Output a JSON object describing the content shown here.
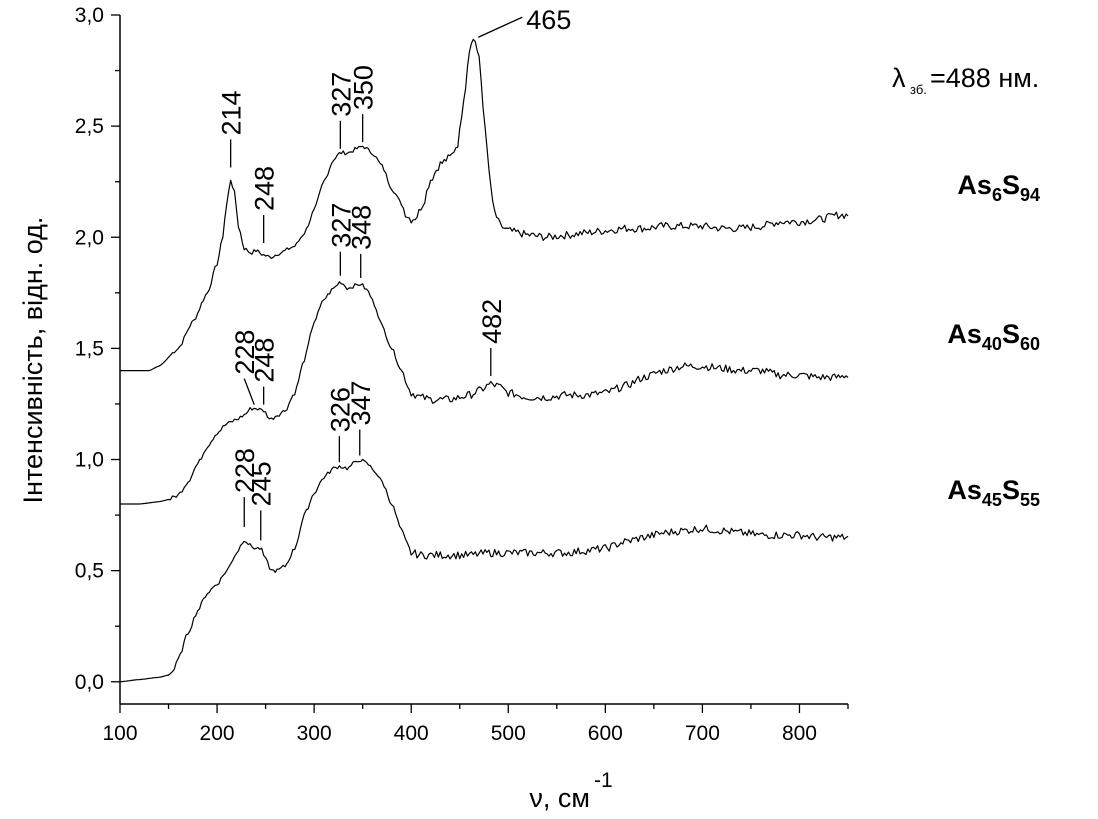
{
  "chart_data": {
    "type": "line",
    "xlabel": "ν, см",
    "xlabel_sup": "-1",
    "ylabel": "Інтенсивність, відн. од.",
    "xlim": [
      100,
      850
    ],
    "ylim": [
      -0.1,
      3.0
    ],
    "x_ticks": [
      100,
      200,
      300,
      400,
      500,
      600,
      700,
      800
    ],
    "x_tick_labels": [
      "100",
      "200",
      "300",
      "400",
      "500",
      "600",
      "700",
      "800"
    ],
    "y_ticks": [
      0.0,
      0.5,
      1.0,
      1.5,
      2.0,
      2.5,
      3.0
    ],
    "y_tick_labels": [
      "0,0",
      "0,5",
      "1,0",
      "1,5",
      "2,0",
      "2,5",
      "3,0"
    ],
    "grid": false,
    "excitation_note": {
      "symbol": "λ",
      "subscript": "зб.",
      "rest": "=488 нм."
    },
    "series": [
      {
        "label_main": "As",
        "label_sub1": "6",
        "label_mid": "S",
        "label_sub2": "94",
        "points": [
          [
            100,
            1.4
          ],
          [
            130,
            1.4
          ],
          [
            140,
            1.42
          ],
          [
            160,
            1.5
          ],
          [
            175,
            1.62
          ],
          [
            190,
            1.75
          ],
          [
            200,
            1.88
          ],
          [
            205,
            1.98
          ],
          [
            210,
            2.15
          ],
          [
            214,
            2.26
          ],
          [
            218,
            2.2
          ],
          [
            222,
            2.05
          ],
          [
            228,
            1.95
          ],
          [
            235,
            1.93
          ],
          [
            240,
            1.94
          ],
          [
            248,
            1.92
          ],
          [
            255,
            1.91
          ],
          [
            265,
            1.93
          ],
          [
            280,
            1.96
          ],
          [
            290,
            2.02
          ],
          [
            300,
            2.12
          ],
          [
            310,
            2.25
          ],
          [
            320,
            2.35
          ],
          [
            327,
            2.38
          ],
          [
            335,
            2.38
          ],
          [
            345,
            2.4
          ],
          [
            350,
            2.41
          ],
          [
            360,
            2.38
          ],
          [
            370,
            2.32
          ],
          [
            380,
            2.22
          ],
          [
            390,
            2.15
          ],
          [
            395,
            2.1
          ],
          [
            400,
            2.08
          ],
          [
            405,
            2.09
          ],
          [
            412,
            2.15
          ],
          [
            420,
            2.26
          ],
          [
            430,
            2.33
          ],
          [
            440,
            2.36
          ],
          [
            448,
            2.42
          ],
          [
            455,
            2.65
          ],
          [
            460,
            2.85
          ],
          [
            465,
            2.9
          ],
          [
            470,
            2.8
          ],
          [
            475,
            2.55
          ],
          [
            480,
            2.3
          ],
          [
            485,
            2.12
          ],
          [
            492,
            2.05
          ],
          [
            500,
            2.03
          ],
          [
            510,
            2.02
          ],
          [
            520,
            2.01
          ],
          [
            540,
            2.0
          ],
          [
            560,
            2.01
          ],
          [
            580,
            2.02
          ],
          [
            600,
            2.03
          ],
          [
            620,
            2.04
          ],
          [
            640,
            2.04
          ],
          [
            660,
            2.05
          ],
          [
            680,
            2.05
          ],
          [
            700,
            2.05
          ],
          [
            720,
            2.04
          ],
          [
            740,
            2.04
          ],
          [
            760,
            2.05
          ],
          [
            780,
            2.07
          ],
          [
            800,
            2.07
          ],
          [
            820,
            2.08
          ],
          [
            840,
            2.1
          ],
          [
            850,
            2.1
          ]
        ]
      },
      {
        "label_main": "As",
        "label_sub1": "40",
        "label_mid": "S",
        "label_sub2": "60",
        "points": [
          [
            100,
            0.8
          ],
          [
            120,
            0.8
          ],
          [
            140,
            0.81
          ],
          [
            150,
            0.82
          ],
          [
            160,
            0.84
          ],
          [
            170,
            0.9
          ],
          [
            180,
            0.98
          ],
          [
            190,
            1.06
          ],
          [
            200,
            1.12
          ],
          [
            210,
            1.16
          ],
          [
            220,
            1.18
          ],
          [
            228,
            1.2
          ],
          [
            235,
            1.23
          ],
          [
            240,
            1.23
          ],
          [
            248,
            1.22
          ],
          [
            255,
            1.18
          ],
          [
            262,
            1.2
          ],
          [
            270,
            1.22
          ],
          [
            280,
            1.3
          ],
          [
            290,
            1.45
          ],
          [
            300,
            1.62
          ],
          [
            310,
            1.72
          ],
          [
            320,
            1.77
          ],
          [
            327,
            1.8
          ],
          [
            335,
            1.77
          ],
          [
            340,
            1.78
          ],
          [
            348,
            1.79
          ],
          [
            355,
            1.76
          ],
          [
            362,
            1.7
          ],
          [
            370,
            1.6
          ],
          [
            380,
            1.5
          ],
          [
            390,
            1.4
          ],
          [
            400,
            1.3
          ],
          [
            410,
            1.28
          ],
          [
            420,
            1.27
          ],
          [
            440,
            1.27
          ],
          [
            460,
            1.29
          ],
          [
            470,
            1.31
          ],
          [
            482,
            1.34
          ],
          [
            490,
            1.33
          ],
          [
            500,
            1.3
          ],
          [
            520,
            1.28
          ],
          [
            540,
            1.28
          ],
          [
            560,
            1.29
          ],
          [
            580,
            1.29
          ],
          [
            600,
            1.3
          ],
          [
            620,
            1.33
          ],
          [
            640,
            1.37
          ],
          [
            660,
            1.4
          ],
          [
            680,
            1.42
          ],
          [
            700,
            1.42
          ],
          [
            720,
            1.41
          ],
          [
            740,
            1.4
          ],
          [
            760,
            1.4
          ],
          [
            780,
            1.38
          ],
          [
            800,
            1.38
          ],
          [
            820,
            1.37
          ],
          [
            840,
            1.37
          ],
          [
            850,
            1.38
          ]
        ]
      },
      {
        "label_main": "As",
        "label_sub1": "45",
        "label_mid": "S",
        "label_sub2": "55",
        "points": [
          [
            100,
            0.0
          ],
          [
            120,
            0.01
          ],
          [
            140,
            0.02
          ],
          [
            150,
            0.03
          ],
          [
            155,
            0.05
          ],
          [
            160,
            0.1
          ],
          [
            170,
            0.22
          ],
          [
            180,
            0.32
          ],
          [
            190,
            0.4
          ],
          [
            200,
            0.44
          ],
          [
            210,
            0.5
          ],
          [
            220,
            0.58
          ],
          [
            228,
            0.64
          ],
          [
            235,
            0.61
          ],
          [
            240,
            0.6
          ],
          [
            245,
            0.6
          ],
          [
            250,
            0.55
          ],
          [
            256,
            0.5
          ],
          [
            262,
            0.5
          ],
          [
            270,
            0.52
          ],
          [
            280,
            0.6
          ],
          [
            290,
            0.75
          ],
          [
            300,
            0.85
          ],
          [
            310,
            0.92
          ],
          [
            320,
            0.96
          ],
          [
            326,
            0.97
          ],
          [
            335,
            0.96
          ],
          [
            340,
            0.98
          ],
          [
            347,
            1.0
          ],
          [
            355,
            0.98
          ],
          [
            362,
            0.95
          ],
          [
            370,
            0.9
          ],
          [
            380,
            0.8
          ],
          [
            390,
            0.68
          ],
          [
            395,
            0.62
          ],
          [
            400,
            0.58
          ],
          [
            410,
            0.57
          ],
          [
            420,
            0.57
          ],
          [
            440,
            0.57
          ],
          [
            460,
            0.57
          ],
          [
            480,
            0.58
          ],
          [
            500,
            0.58
          ],
          [
            520,
            0.58
          ],
          [
            540,
            0.58
          ],
          [
            560,
            0.58
          ],
          [
            580,
            0.59
          ],
          [
            600,
            0.6
          ],
          [
            620,
            0.63
          ],
          [
            640,
            0.65
          ],
          [
            660,
            0.67
          ],
          [
            680,
            0.68
          ],
          [
            700,
            0.69
          ],
          [
            720,
            0.68
          ],
          [
            740,
            0.67
          ],
          [
            760,
            0.66
          ],
          [
            780,
            0.66
          ],
          [
            800,
            0.66
          ],
          [
            820,
            0.65
          ],
          [
            840,
            0.65
          ],
          [
            850,
            0.65
          ]
        ]
      }
    ],
    "annotations": [
      {
        "text": "214",
        "x": 214,
        "y": 2.26,
        "rot": true,
        "gap": 12,
        "len": 28
      },
      {
        "text": "248",
        "x": 248,
        "y": 1.92,
        "rot": true,
        "gap": 12,
        "len": 28
      },
      {
        "text": "327",
        "x": 327,
        "y": 2.38,
        "rot": true,
        "gap": 4,
        "len": 28
      },
      {
        "text": "350",
        "x": 350,
        "y": 2.41,
        "rot": true,
        "gap": 4,
        "len": 28
      },
      {
        "text": "465",
        "x": 465,
        "y": 2.9,
        "rot": false
      },
      {
        "text": "327",
        "x": 327,
        "y": 1.8,
        "rot": true,
        "gap": 6,
        "len": 24
      },
      {
        "text": "348",
        "x": 348,
        "y": 1.79,
        "rot": true,
        "gap": 6,
        "len": 24
      },
      {
        "text": "228",
        "x": 228,
        "y": 1.22,
        "rot": true,
        "gap": 6,
        "len": 26,
        "lean": 10
      },
      {
        "text": "248",
        "x": 248,
        "y": 1.22,
        "rot": true,
        "gap": 6,
        "len": 18
      },
      {
        "text": "482",
        "x": 482,
        "y": 1.34,
        "rot": true,
        "gap": 8,
        "len": 28
      },
      {
        "text": "326",
        "x": 326,
        "y": 0.97,
        "rot": true,
        "gap": 4,
        "len": 26
      },
      {
        "text": "347",
        "x": 347,
        "y": 1.0,
        "rot": true,
        "gap": 4,
        "len": 26
      },
      {
        "text": "228",
        "x": 228,
        "y": 0.66,
        "rot": true,
        "gap": 8,
        "len": 30
      },
      {
        "text": "245",
        "x": 245,
        "y": 0.6,
        "rot": true,
        "gap": 8,
        "len": 30
      }
    ]
  }
}
